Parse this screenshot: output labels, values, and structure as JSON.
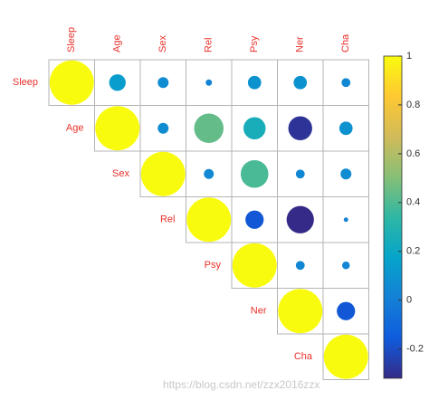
{
  "chart_data": {
    "type": "corrplot",
    "variables": [
      "Sleep",
      "Age",
      "Sex",
      "Rel",
      "Psy",
      "Ner",
      "Cha"
    ],
    "values": [
      [
        1,
        0.14,
        0.06,
        0.02,
        0.09,
        0.09,
        0.04
      ],
      [
        null,
        1,
        0.06,
        0.44,
        0.25,
        -0.29,
        0.09
      ],
      [
        null,
        null,
        1,
        0.05,
        0.39,
        0.04,
        0.06
      ],
      [
        null,
        null,
        null,
        1,
        -0.17,
        -0.38,
        0.01
      ],
      [
        null,
        null,
        null,
        null,
        1,
        0.04,
        0.03
      ],
      [
        null,
        null,
        null,
        null,
        null,
        1,
        -0.17
      ],
      [
        null,
        null,
        null,
        null,
        null,
        null,
        1
      ]
    ],
    "clim": [
      -0.32,
      1
    ],
    "cticks": [
      -0.2,
      0,
      0.2,
      0.4,
      0.6,
      0.8,
      1
    ],
    "colormap": [
      "#352a87",
      "#0f5cdd",
      "#1481d6",
      "#06a4ca",
      "#2eb7a4",
      "#87bf77",
      "#d1bb59",
      "#fec832",
      "#f9fb0e"
    ],
    "label_color": "#e8302a",
    "watermark": "https://blog.csdn.net/zzx2016zzx"
  }
}
